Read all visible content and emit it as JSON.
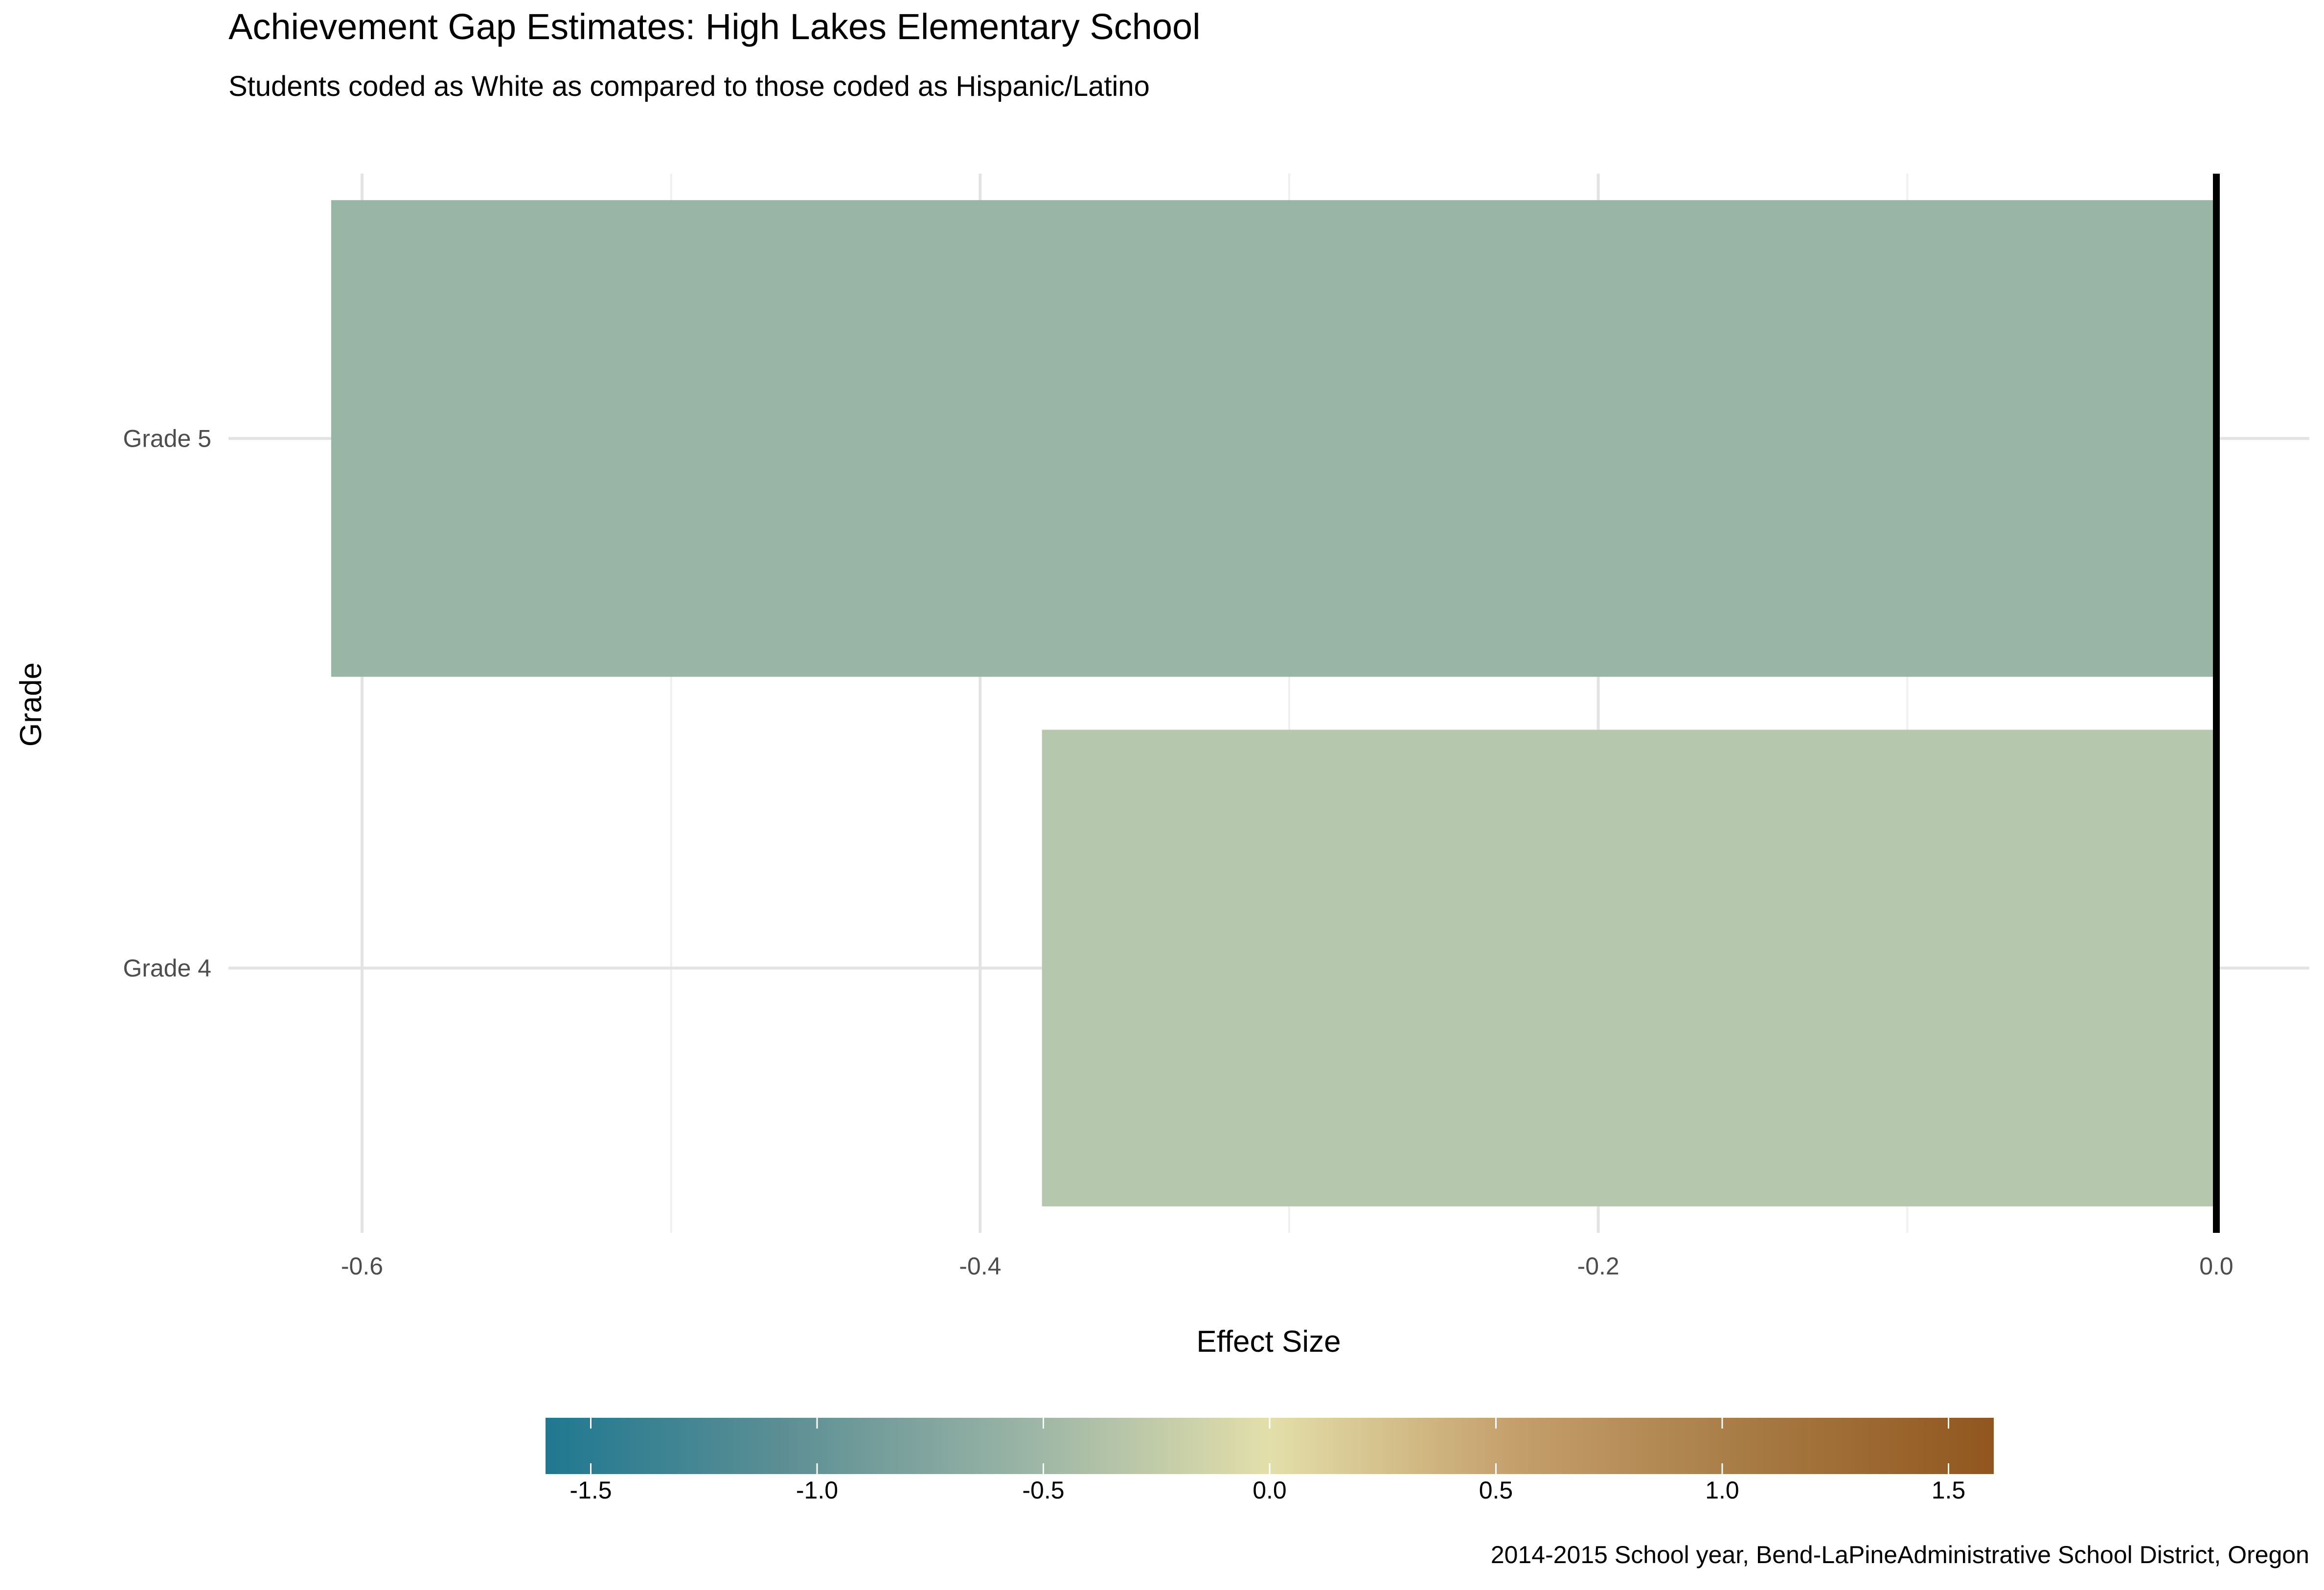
{
  "title": "Achievement Gap Estimates: High Lakes Elementary School",
  "subtitle": "Students coded as White as compared to those coded as Hispanic/Latino",
  "caption": "2014-2015 School year, Bend-LaPineAdministrative School District, Oregon",
  "chart_data": {
    "type": "bar",
    "orientation": "horizontal",
    "categories": [
      "Grade 4",
      "Grade 5"
    ],
    "values": [
      -0.38,
      -0.61
    ],
    "bar_colors": [
      "#b5c8ad",
      "#99b5a6"
    ],
    "xlabel": "Effect Size",
    "ylabel": "Grade",
    "xlim": [
      -0.625,
      0.03
    ],
    "x_ticks": [
      -0.6,
      -0.4,
      -0.2,
      0.0
    ],
    "x_tick_labels": [
      "-0.6",
      "-0.4",
      "-0.2",
      "0.0"
    ],
    "reference_line_x": 0,
    "grid": true,
    "legend": {
      "type": "colorbar",
      "position": "bottom",
      "range": [
        -1.6,
        1.6
      ],
      "ticks": [
        -1.5,
        -1.0,
        -0.5,
        0.0,
        0.5,
        1.0,
        1.5
      ],
      "tick_labels": [
        "-1.5",
        "-1.0",
        "-0.5",
        "0.0",
        "0.5",
        "1.0",
        "1.5"
      ],
      "colors": [
        "#1f7891",
        "#5d8f94",
        "#9bb5a6",
        "#e3dfaa",
        "#c5a06c",
        "#a77a43",
        "#91561f"
      ]
    }
  }
}
